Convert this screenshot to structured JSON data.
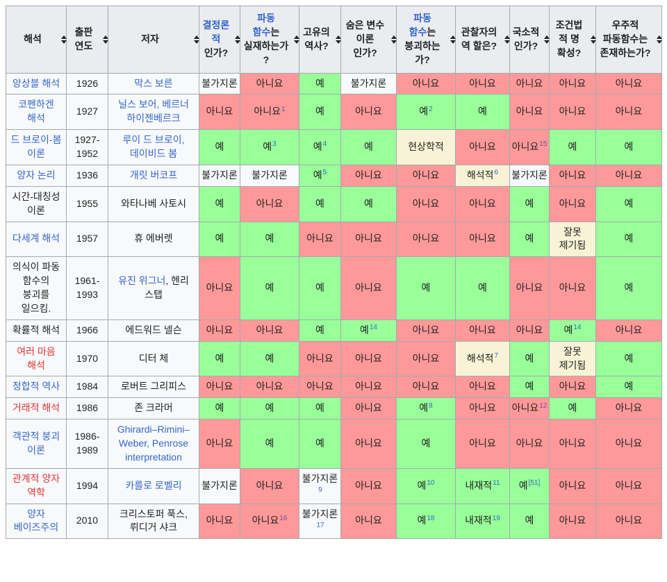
{
  "colors": {
    "yes_bg": "#99FF99",
    "no_bg": "#FF9999",
    "maybe_bg": "#F8F3D6",
    "plain_bg": "#F8F9FA",
    "header_bg": "#EAECF0",
    "border": "#A2A9B1",
    "text": "#202122",
    "link": "#3366CC",
    "redlink": "#DD3333",
    "visited": "#6B4BA1"
  },
  "table": {
    "headers": [
      {
        "key": "interpretation",
        "segments": [
          {
            "text": "해석",
            "style": "plain"
          }
        ]
      },
      {
        "key": "publication-year",
        "segments": [
          {
            "text": "출판 연도",
            "style": "plain"
          }
        ]
      },
      {
        "key": "authors",
        "segments": [
          {
            "text": "저자",
            "style": "plain"
          }
        ]
      },
      {
        "key": "deterministic",
        "segments": [
          {
            "text": "결정론적",
            "style": "link"
          },
          {
            "text": " 인가?",
            "style": "plain"
          }
        ]
      },
      {
        "key": "wavefunction-real",
        "segments": [
          {
            "text": "파동 함수",
            "style": "link"
          },
          {
            "text": "는 실재하는가?",
            "style": "plain"
          }
        ]
      },
      {
        "key": "unique-history",
        "segments": [
          {
            "text": "고유의 역사?",
            "style": "plain"
          }
        ]
      },
      {
        "key": "hidden-variables",
        "segments": [
          {
            "text": "숨은 변수 이론 인가?",
            "style": "plain"
          }
        ]
      },
      {
        "key": "wavefunction-collapse",
        "segments": [
          {
            "text": "파동 함수",
            "style": "link"
          },
          {
            "text": "는 붕괴하는 가?",
            "style": "plain"
          }
        ]
      },
      {
        "key": "observer-role",
        "segments": [
          {
            "text": "관찰자의 역 할은?",
            "style": "plain"
          }
        ]
      },
      {
        "key": "local",
        "segments": [
          {
            "text": "국소적인가?",
            "style": "plain"
          }
        ]
      },
      {
        "key": "counterfactual-definiteness",
        "segments": [
          {
            "text": "조건법적 명 확성?",
            "style": "plain"
          }
        ]
      },
      {
        "key": "universal-wavefunction",
        "segments": [
          {
            "text": "우주적 파동함수는 존재하는가?",
            "style": "plain"
          }
        ]
      }
    ],
    "rows": [
      {
        "name": [
          {
            "text": "앙상블 해석",
            "style": "link"
          }
        ],
        "year": "1926",
        "authors": [
          {
            "text": "막스 보른",
            "style": "link"
          }
        ],
        "values": [
          {
            "text": "불가지론",
            "bg": "plain"
          },
          {
            "text": "아니요",
            "bg": "no"
          },
          {
            "text": "예",
            "bg": "yes"
          },
          {
            "text": "불가지론",
            "bg": "plain"
          },
          {
            "text": "아니요",
            "bg": "no"
          },
          {
            "text": "아니요",
            "bg": "no"
          },
          {
            "text": "아니요",
            "bg": "no"
          },
          {
            "text": "아니요",
            "bg": "no"
          },
          {
            "text": "아니요",
            "bg": "no"
          }
        ]
      },
      {
        "name": [
          {
            "text": "코펜하겐 해석",
            "style": "link"
          }
        ],
        "year": "1927",
        "authors": [
          {
            "text": "닐스 보어, 베르너 하이젠베르크",
            "style": "link"
          }
        ],
        "values": [
          {
            "text": "아니요",
            "bg": "no"
          },
          {
            "text": "아니요",
            "bg": "no",
            "sup": "1",
            "supStyle": "link"
          },
          {
            "text": "예",
            "bg": "yes"
          },
          {
            "text": "아니요",
            "bg": "no"
          },
          {
            "text": "예",
            "bg": "yes",
            "sup": "2",
            "supStyle": "link"
          },
          {
            "text": "예",
            "bg": "yes"
          },
          {
            "text": "아니요",
            "bg": "no"
          },
          {
            "text": "아니요",
            "bg": "no"
          },
          {
            "text": "아니요",
            "bg": "no"
          }
        ]
      },
      {
        "name": [
          {
            "text": "드 브로이-봄 이론",
            "style": "link"
          }
        ],
        "year": "1927-1952",
        "authors": [
          {
            "text": "루이 드 브로이, 데이비드 봄",
            "style": "link"
          }
        ],
        "values": [
          {
            "text": "예",
            "bg": "yes"
          },
          {
            "text": "예",
            "bg": "yes",
            "sup": "3",
            "supStyle": "link"
          },
          {
            "text": "예",
            "bg": "yes",
            "sup": "4",
            "supStyle": "link"
          },
          {
            "text": "예",
            "bg": "yes"
          },
          {
            "text": "현상학적",
            "bg": "maybe"
          },
          {
            "text": "아니요",
            "bg": "no"
          },
          {
            "text": "아니요",
            "bg": "no",
            "sup": "15",
            "supStyle": "visited"
          },
          {
            "text": "예",
            "bg": "yes"
          },
          {
            "text": "예",
            "bg": "yes"
          }
        ]
      },
      {
        "name": [
          {
            "text": "양자 논리",
            "style": "link"
          }
        ],
        "year": "1936",
        "authors": [
          {
            "text": "개릿 버코프",
            "style": "link"
          }
        ],
        "values": [
          {
            "text": "불가지론",
            "bg": "plain"
          },
          {
            "text": "불가지론",
            "bg": "plain"
          },
          {
            "text": "예",
            "bg": "yes",
            "sup": "5",
            "supStyle": "link"
          },
          {
            "text": "아니요",
            "bg": "no"
          },
          {
            "text": "아니요",
            "bg": "no"
          },
          {
            "text": "해석적",
            "bg": "maybe",
            "sup": "6",
            "supStyle": "link"
          },
          {
            "text": "불가지론",
            "bg": "plain"
          },
          {
            "text": "아니요",
            "bg": "no"
          },
          {
            "text": "아니요",
            "bg": "no"
          }
        ]
      },
      {
        "name": [
          {
            "text": "시간-대칭성 이론",
            "style": "plain"
          }
        ],
        "year": "1955",
        "authors": [
          {
            "text": "와타나베 사토시",
            "style": "plain"
          }
        ],
        "values": [
          {
            "text": "예",
            "bg": "yes"
          },
          {
            "text": "아니요",
            "bg": "no"
          },
          {
            "text": "예",
            "bg": "yes"
          },
          {
            "text": "예",
            "bg": "yes"
          },
          {
            "text": "아니요",
            "bg": "no"
          },
          {
            "text": "아니요",
            "bg": "no"
          },
          {
            "text": "예",
            "bg": "yes"
          },
          {
            "text": "아니요",
            "bg": "no"
          },
          {
            "text": "예",
            "bg": "yes"
          }
        ]
      },
      {
        "name": [
          {
            "text": "다세계 해석",
            "style": "link"
          }
        ],
        "year": "1957",
        "authors": [
          {
            "text": "휴 에버렛",
            "style": "plain"
          }
        ],
        "values": [
          {
            "text": "예",
            "bg": "yes"
          },
          {
            "text": "예",
            "bg": "yes"
          },
          {
            "text": "아니요",
            "bg": "no"
          },
          {
            "text": "아니요",
            "bg": "no"
          },
          {
            "text": "아니요",
            "bg": "no"
          },
          {
            "text": "아니요",
            "bg": "no"
          },
          {
            "text": "예",
            "bg": "yes"
          },
          {
            "text": "잘못 제기됨",
            "bg": "maybe"
          },
          {
            "text": "예",
            "bg": "yes"
          }
        ]
      },
      {
        "name": [
          {
            "text": "의식이 파동 함수의 붕괴를 일으킴.",
            "style": "plain"
          }
        ],
        "year": "1961-1993",
        "authors": [
          {
            "text": "유진 위그너",
            "style": "link"
          },
          {
            "text": ", 헨리 스탭",
            "style": "plain"
          }
        ],
        "values": [
          {
            "text": "아니요",
            "bg": "no"
          },
          {
            "text": "예",
            "bg": "yes"
          },
          {
            "text": "예",
            "bg": "yes"
          },
          {
            "text": "아니요",
            "bg": "no"
          },
          {
            "text": "예",
            "bg": "yes"
          },
          {
            "text": "예",
            "bg": "yes"
          },
          {
            "text": "아니요",
            "bg": "no"
          },
          {
            "text": "아니요",
            "bg": "no"
          },
          {
            "text": "예",
            "bg": "yes"
          }
        ]
      },
      {
        "name": [
          {
            "text": "확률적 해석",
            "style": "plain"
          }
        ],
        "year": "1966",
        "authors": [
          {
            "text": "에드워드 넬슨",
            "style": "plain"
          }
        ],
        "values": [
          {
            "text": "아니요",
            "bg": "no"
          },
          {
            "text": "아니요",
            "bg": "no"
          },
          {
            "text": "예",
            "bg": "yes"
          },
          {
            "text": "예",
            "bg": "yes",
            "sup": "14",
            "supStyle": "link"
          },
          {
            "text": "아니요",
            "bg": "no"
          },
          {
            "text": "아니요",
            "bg": "no"
          },
          {
            "text": "아니요",
            "bg": "no"
          },
          {
            "text": "예",
            "bg": "yes",
            "sup": "14",
            "supStyle": "link"
          },
          {
            "text": "아니요",
            "bg": "no"
          }
        ]
      },
      {
        "name": [
          {
            "text": "여러 마음 해석",
            "style": "redlink"
          }
        ],
        "year": "1970",
        "authors": [
          {
            "text": "디터 체",
            "style": "plain"
          }
        ],
        "values": [
          {
            "text": "예",
            "bg": "yes"
          },
          {
            "text": "예",
            "bg": "yes"
          },
          {
            "text": "아니요",
            "bg": "no"
          },
          {
            "text": "아니요",
            "bg": "no"
          },
          {
            "text": "아니요",
            "bg": "no"
          },
          {
            "text": "해석적",
            "bg": "maybe",
            "sup": "7",
            "supStyle": "link"
          },
          {
            "text": "예",
            "bg": "yes"
          },
          {
            "text": "잘못 제기됨",
            "bg": "maybe"
          },
          {
            "text": "예",
            "bg": "yes"
          }
        ]
      },
      {
        "name": [
          {
            "text": "정합적 역사",
            "style": "link"
          }
        ],
        "year": "1984",
        "authors": [
          {
            "text": "로버트 그리피스",
            "style": "plain"
          }
        ],
        "values": [
          {
            "text": "아니요",
            "bg": "no"
          },
          {
            "text": "아니요",
            "bg": "no"
          },
          {
            "text": "아니요",
            "bg": "no"
          },
          {
            "text": "아니요",
            "bg": "no"
          },
          {
            "text": "아니요",
            "bg": "no"
          },
          {
            "text": "아니요",
            "bg": "no"
          },
          {
            "text": "예",
            "bg": "yes"
          },
          {
            "text": "아니요",
            "bg": "no"
          },
          {
            "text": "예",
            "bg": "yes"
          }
        ]
      },
      {
        "name": [
          {
            "text": "거래적 해석",
            "style": "redlink"
          }
        ],
        "year": "1986",
        "authors": [
          {
            "text": "존 크라머",
            "style": "plain"
          }
        ],
        "values": [
          {
            "text": "예",
            "bg": "yes"
          },
          {
            "text": "예",
            "bg": "yes"
          },
          {
            "text": "예",
            "bg": "yes"
          },
          {
            "text": "아니요",
            "bg": "no"
          },
          {
            "text": "예",
            "bg": "yes",
            "sup": "8",
            "supStyle": "link"
          },
          {
            "text": "아니요",
            "bg": "no"
          },
          {
            "text": "아니요",
            "bg": "no",
            "sup": "12",
            "supStyle": "visited"
          },
          {
            "text": "예",
            "bg": "yes"
          },
          {
            "text": "아니요",
            "bg": "no"
          }
        ]
      },
      {
        "name": [
          {
            "text": "객관적 붕괴 이론",
            "style": "link"
          }
        ],
        "year": "1986-1989",
        "authors": [
          {
            "text": "Ghirardi–Rimini–Weber, Penrose interpretation",
            "style": "link"
          }
        ],
        "values": [
          {
            "text": "아니요",
            "bg": "no"
          },
          {
            "text": "예",
            "bg": "yes"
          },
          {
            "text": "예",
            "bg": "yes"
          },
          {
            "text": "아니요",
            "bg": "no"
          },
          {
            "text": "예",
            "bg": "yes"
          },
          {
            "text": "아니요",
            "bg": "no"
          },
          {
            "text": "아니요",
            "bg": "no"
          },
          {
            "text": "아니요",
            "bg": "no"
          },
          {
            "text": "아니요",
            "bg": "no"
          }
        ]
      },
      {
        "name": [
          {
            "text": "관계적 양자 역학",
            "style": "redlink"
          }
        ],
        "year": "1994",
        "authors": [
          {
            "text": "카를로 로벨리",
            "style": "link"
          }
        ],
        "values": [
          {
            "text": "불가지론",
            "bg": "plain"
          },
          {
            "text": "아니요",
            "bg": "no"
          },
          {
            "text": "불가지론",
            "bg": "plain",
            "sup": "9",
            "supStyle": "link"
          },
          {
            "text": "아니요",
            "bg": "no"
          },
          {
            "text": "예",
            "bg": "yes",
            "sup": "10",
            "supStyle": "link"
          },
          {
            "text": "내재적",
            "bg": "yes",
            "sup": "11",
            "supStyle": "link"
          },
          {
            "text": "예",
            "bg": "yes",
            "sup": "[51]",
            "supStyle": "link"
          },
          {
            "text": "아니요",
            "bg": "no"
          },
          {
            "text": "아니요",
            "bg": "no"
          }
        ]
      },
      {
        "name": [
          {
            "text": "양자 베이즈주의",
            "style": "link"
          }
        ],
        "year": "2010",
        "authors": [
          {
            "text": "크리스토퍼 푹스, 뤼디거 샤크",
            "style": "plain"
          }
        ],
        "values": [
          {
            "text": "아니요",
            "bg": "no"
          },
          {
            "text": "아니요",
            "bg": "no",
            "sup": "16",
            "supStyle": "visited"
          },
          {
            "text": "불가지론",
            "bg": "plain",
            "sup": "17",
            "supStyle": "link"
          },
          {
            "text": "아니요",
            "bg": "no"
          },
          {
            "text": "예",
            "bg": "yes",
            "sup": "18",
            "supStyle": "link"
          },
          {
            "text": "내재적",
            "bg": "yes",
            "sup": "19",
            "supStyle": "link"
          },
          {
            "text": "예",
            "bg": "yes"
          },
          {
            "text": "아니요",
            "bg": "no"
          },
          {
            "text": "아니요",
            "bg": "no"
          }
        ]
      }
    ]
  }
}
